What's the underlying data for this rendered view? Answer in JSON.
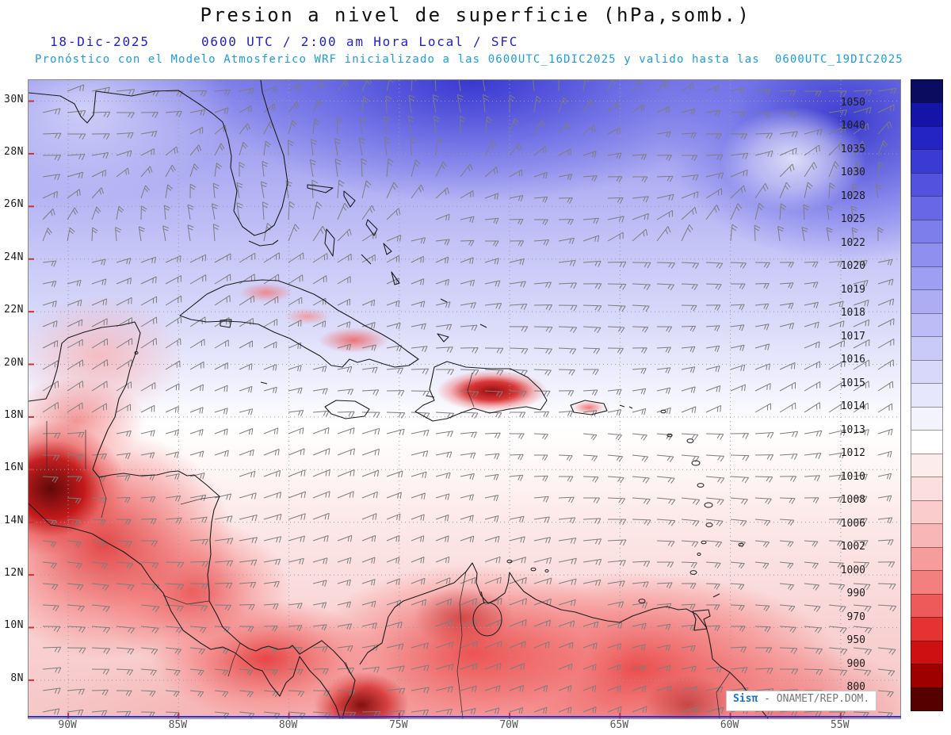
{
  "header": {
    "title": "Presion a nivel de superficie (hPa,somb.)",
    "date": "18-Dic-2025",
    "time_line": "0600 UTC / 2:00 am Hora Local / SFC",
    "subtitle": "Pronóstico con el Modelo Atmosferico WRF inicializado a las 0600UTC_16DIC2025 y valido hasta las  0600UTC_19DIC2025",
    "colors": {
      "title": "#101010",
      "date_line": "#2222cc",
      "subtitle": "#1e9ce0"
    }
  },
  "map": {
    "lat_labels": [
      "30N",
      "28N",
      "26N",
      "24N",
      "22N",
      "20N",
      "18N",
      "16N",
      "14N",
      "12N",
      "10N",
      "8N"
    ],
    "lat_values": [
      30,
      28,
      26,
      24,
      22,
      20,
      18,
      16,
      14,
      12,
      10,
      8
    ],
    "lon_labels": [
      "90W",
      "85W",
      "80W",
      "75W",
      "70W",
      "65W",
      "60W",
      "55W"
    ],
    "lon_values": [
      -90,
      -85,
      -80,
      -75,
      -70,
      -65,
      -60,
      -55
    ],
    "grid": "dotted gray every 2 deg lat / 5 deg lon",
    "tick_color": "#cc3333"
  },
  "colorbar": {
    "labels": [
      "1050",
      "1040",
      "1035",
      "1030",
      "1028",
      "1025",
      "1022",
      "1020",
      "1019",
      "1018",
      "1017",
      "1016",
      "1015",
      "1014",
      "1013",
      "1012",
      "1010",
      "1008",
      "1006",
      "1002",
      "1000",
      "990",
      "970",
      "950",
      "900",
      "800"
    ],
    "colors": [
      "#0b0b60",
      "#1414a8",
      "#2424c4",
      "#3b3bd4",
      "#5252de",
      "#6868e6",
      "#7d7dec",
      "#8f8ff0",
      "#9e9ef2",
      "#adadf4",
      "#bcbcf6",
      "#cacaf8",
      "#d8d8fa",
      "#e6e6fc",
      "#f3f3fe",
      "#ffffff",
      "#fdecec",
      "#fcdede",
      "#facccc",
      "#f8b6b6",
      "#f69c9c",
      "#f37f7f",
      "#ee5a5a",
      "#e63232",
      "#cf1010",
      "#9e0000",
      "#570000"
    ]
  },
  "watermark": {
    "brand": "Sisπ",
    "source": "- ONAMET/REP.DOM."
  },
  "chart_data": {
    "type": "heatmap",
    "title": "Presion a nivel de superficie (hPa,somb.)",
    "variable": "Presion a nivel de superficie",
    "units": "hPa",
    "valid": "18-Dic-2025 0600 UTC / 2:00 am Hora Local / SFC",
    "model": "WRF",
    "initialized": "0600UTC_16DIC2025",
    "valid_until": "0600UTC_19DIC2025",
    "x_axis": {
      "label": "",
      "ticks": [
        "90W",
        "85W",
        "80W",
        "75W",
        "70W",
        "65W",
        "60W",
        "55W"
      ]
    },
    "y_axis": {
      "label": "",
      "ticks": [
        "30N",
        "28N",
        "26N",
        "24N",
        "22N",
        "20N",
        "18N",
        "16N",
        "14N",
        "12N",
        "10N",
        "8N"
      ]
    },
    "extent_estimate": {
      "lon": [
        "92W",
        "52W"
      ],
      "lat": [
        "6.5N",
        "31N"
      ]
    },
    "shade_levels_hPa": [
      800,
      900,
      950,
      970,
      990,
      1000,
      1002,
      1006,
      1008,
      1010,
      1012,
      1013,
      1014,
      1015,
      1016,
      1017,
      1018,
      1019,
      1020,
      1022,
      1025,
      1028,
      1030,
      1035,
      1040,
      1050
    ],
    "legend_position": "right",
    "grid": true,
    "overlays": [
      "surface wind barbs (gray)",
      "coastlines and borders (black)"
    ],
    "field_summary": [
      {
        "region": "Atlantico norte (24-30N)",
        "pressure_hPa": "1018-1030, sombras azules, maximo hacia el norte/noreste"
      },
      {
        "region": "Caribe central (14-20N)",
        "pressure_hPa": "1012-1015, banda casi blanca"
      },
      {
        "region": "Centroamerica (Guatemala-Panama)",
        "pressure_hPa": "<=1006 con nucleos rojo oscuro <=1000"
      },
      {
        "region": "Norte de Suramerica (Colombia/Venezuela)",
        "pressure_hPa": "<=1006 con nucleos rojo oscuro"
      },
      {
        "region": "La Espanola y Antillas Mayores",
        "pressure_hPa": "nucleos rojos locales <=1006 sobre tierra"
      }
    ]
  }
}
